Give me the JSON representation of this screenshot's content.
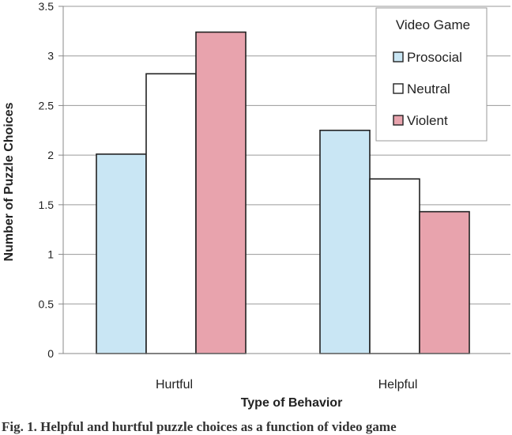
{
  "chart_data": {
    "type": "bar",
    "title": "",
    "xlabel": "Type of Behavior",
    "ylabel": "Number of Puzzle Choices",
    "categories": [
      "Hurtful",
      "Helpful"
    ],
    "series": [
      {
        "name": "Prosocial",
        "values": [
          2.01,
          2.25
        ],
        "color": "#c9e6f4"
      },
      {
        "name": "Neutral",
        "values": [
          2.82,
          1.76
        ],
        "color": "#ffffff"
      },
      {
        "name": "Violent",
        "values": [
          3.24,
          1.43
        ],
        "color": "#e8a3ad"
      }
    ],
    "ylim": [
      0,
      3.5
    ],
    "yticks": [
      "0",
      "0.5",
      "1",
      "1.5",
      "2",
      "2.5",
      "3",
      "3.5"
    ],
    "grid": true,
    "legend": {
      "title": "Video Game",
      "placement": "top-right"
    }
  },
  "caption": "Fig. 1.  Helpful and hurtful puzzle choices as a function of video game"
}
